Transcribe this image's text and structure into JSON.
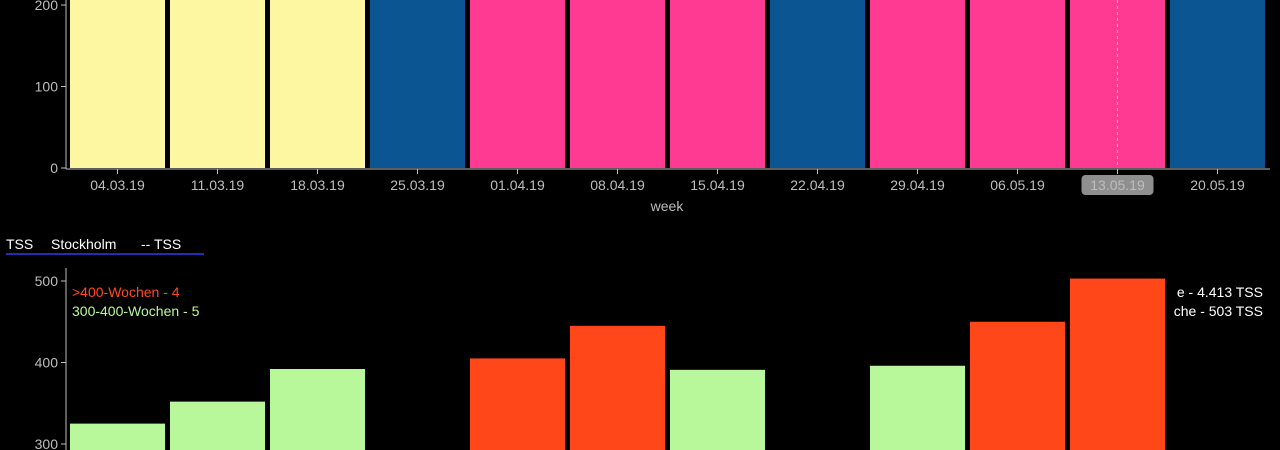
{
  "legend": {
    "items": [
      "TSS",
      "Stockholm",
      "-- TSS"
    ]
  },
  "stats_left": [
    {
      "text": ">400-Wochen - 4",
      "color": "#ff4a1c"
    },
    {
      "text": "300-400-Wochen - 5",
      "color": "#b8f79a"
    }
  ],
  "stats_right": [
    {
      "text": "e - 4.413 TSS"
    },
    {
      "text": "che - 503 TSS"
    }
  ],
  "colors": {
    "yellow": "#fcf7a0",
    "blue": "#0a5592",
    "pink": "#ff3a92",
    "orange": "#ff471a",
    "green": "#b8f79a",
    "axis": "#bdbdbd",
    "highlight_label_bg": "#8f8f8f",
    "legend_underline": "#2a2ab0"
  },
  "chart_data": [
    {
      "type": "bar",
      "xlabel": "week",
      "ylabel": "",
      "categories": [
        "04.03.19",
        "11.03.19",
        "18.03.19",
        "25.03.19",
        "01.04.19",
        "08.04.19",
        "15.04.19",
        "22.04.19",
        "29.04.19",
        "06.05.19",
        "13.05.19",
        "20.05.19"
      ],
      "values": [
        null,
        null,
        null,
        null,
        null,
        null,
        null,
        null,
        null,
        null,
        null,
        null
      ],
      "bar_colors": [
        "yellow",
        "yellow",
        "yellow",
        "blue",
        "pink",
        "pink",
        "pink",
        "blue",
        "pink",
        "pink",
        "pink",
        "blue"
      ],
      "yticks": [
        0,
        100,
        200
      ],
      "ylim": [
        0,
        210
      ],
      "highlighted_category": "13.05.19"
    },
    {
      "type": "bar",
      "title": "",
      "categories": [
        "04.03.19",
        "11.03.19",
        "18.03.19",
        "25.03.19",
        "01.04.19",
        "08.04.19",
        "15.04.19",
        "22.04.19",
        "29.04.19",
        "06.05.19",
        "13.05.19",
        "20.05.19"
      ],
      "values": [
        325,
        352,
        392,
        null,
        405,
        445,
        391,
        null,
        396,
        450,
        503,
        null
      ],
      "bar_colors": [
        "green",
        "green",
        "green",
        null,
        "orange",
        "orange",
        "green",
        null,
        "green",
        "orange",
        "orange",
        null
      ],
      "yticks": [
        300,
        400,
        500
      ],
      "ylim": [
        290,
        515
      ]
    }
  ]
}
